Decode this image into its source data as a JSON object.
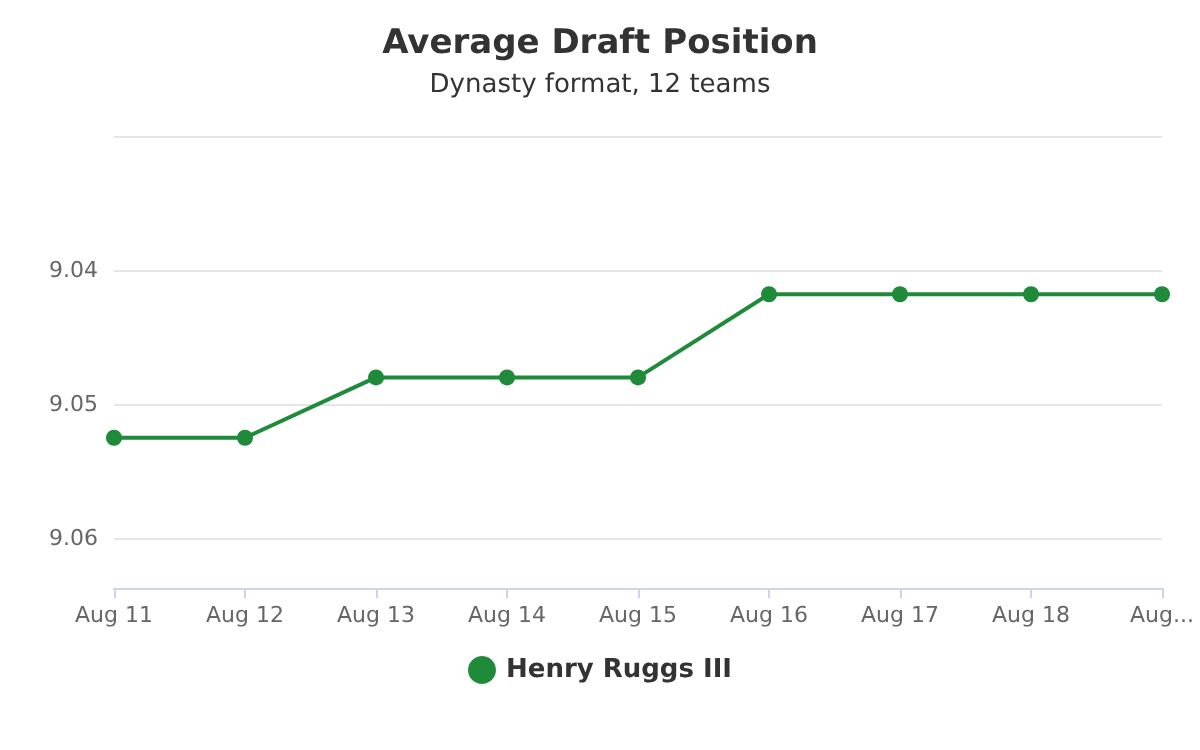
{
  "chart_data": {
    "type": "line",
    "title": "Average Draft Position",
    "subtitle": "Dynasty format, 12 teams",
    "categories": [
      "Aug 11",
      "Aug 12",
      "Aug 13",
      "Aug 14",
      "Aug 15",
      "Aug 16",
      "Aug 17",
      "Aug 18",
      "Aug..."
    ],
    "series": [
      {
        "name": "Henry Ruggs III",
        "color": "#1f8b3a",
        "values": [
          9.0525,
          9.0525,
          9.048,
          9.048,
          9.048,
          9.0418,
          9.0418,
          9.0418,
          9.0418
        ]
      }
    ],
    "ylim": [
      9.0637,
      9.03
    ],
    "yticks": [
      {
        "value": 9.03,
        "label": null
      },
      9.04,
      9.05,
      9.06
    ],
    "grid": "y",
    "legend": "bottom",
    "marker": "circle",
    "line_style": "solid"
  }
}
